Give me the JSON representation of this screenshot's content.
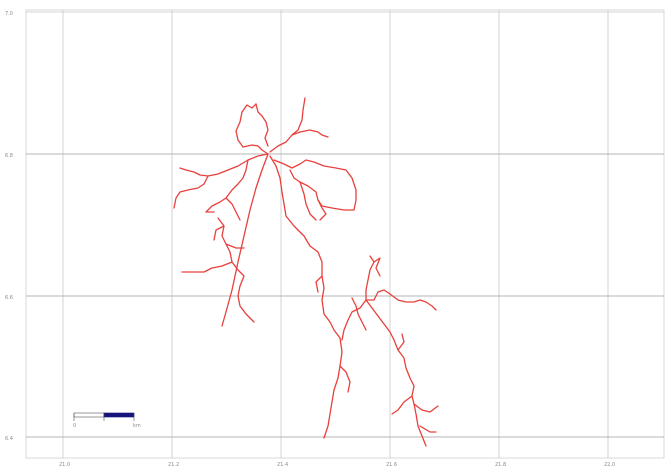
{
  "map": {
    "x_ticks": [
      "21.0",
      "21.2",
      "21.4",
      "21.6",
      "21.8",
      "22.0"
    ],
    "y_ticks": [
      "7.0",
      "6.8",
      "6.6",
      "6.4"
    ],
    "scalebar": {
      "left_label": "0",
      "mid_label": "",
      "right_label": "km"
    },
    "network_color": "#e8403c",
    "scalebar_color": "#14147a"
  }
}
